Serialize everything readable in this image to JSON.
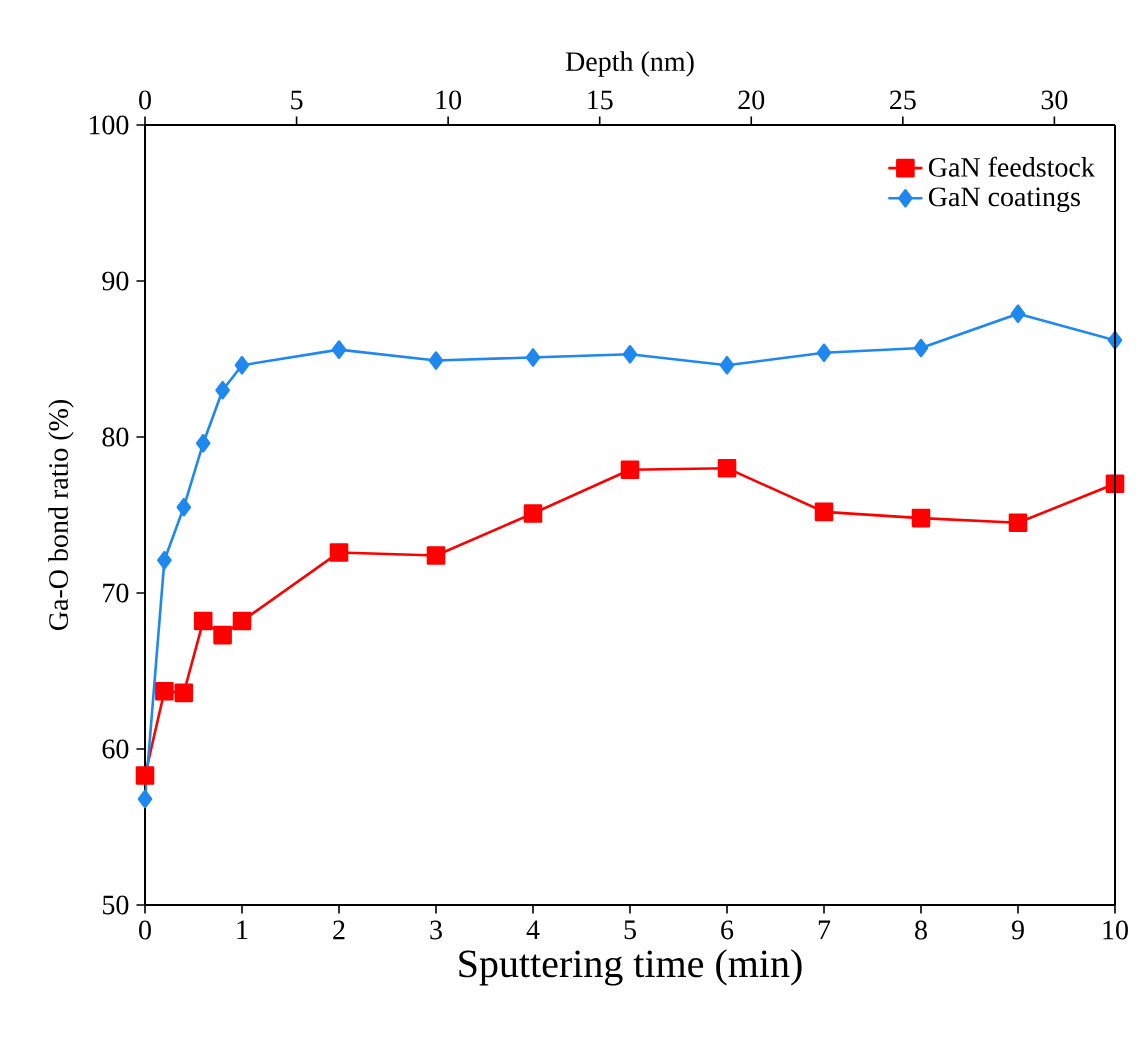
{
  "chart_data": {
    "type": "line",
    "xlabel": "Sputtering time (min)",
    "ylabel": "Ga-O bond ratio (%)",
    "x2label": "Depth (nm)",
    "x": [
      0,
      0.2,
      0.4,
      0.6,
      0.8,
      1,
      2,
      3,
      4,
      5,
      6,
      7,
      8,
      9,
      10
    ],
    "xlim": [
      0,
      10
    ],
    "xticks": [
      0,
      1,
      2,
      3,
      4,
      5,
      6,
      7,
      8,
      9,
      10
    ],
    "x2lim": [
      0,
      32
    ],
    "x2ticks": [
      0,
      5,
      10,
      15,
      20,
      25,
      30
    ],
    "ylim": [
      50,
      100
    ],
    "yticks": [
      50,
      60,
      70,
      80,
      90,
      100
    ],
    "legend": "top right",
    "line_style": "solid",
    "series": [
      {
        "name": "GaN feedstock",
        "color": "#ff0000",
        "marker": "square",
        "values": [
          58.3,
          63.7,
          63.6,
          68.2,
          67.3,
          68.2,
          72.6,
          72.4,
          75.1,
          77.9,
          78.0,
          75.2,
          74.8,
          74.5,
          77.0
        ]
      },
      {
        "name": "GaN coatings",
        "color": "#1e88f0",
        "marker": "diamond",
        "values": [
          56.8,
          72.1,
          75.5,
          79.6,
          83.0,
          84.6,
          85.6,
          84.9,
          85.1,
          85.3,
          84.6,
          85.4,
          85.7,
          87.9,
          86.2
        ]
      }
    ]
  }
}
